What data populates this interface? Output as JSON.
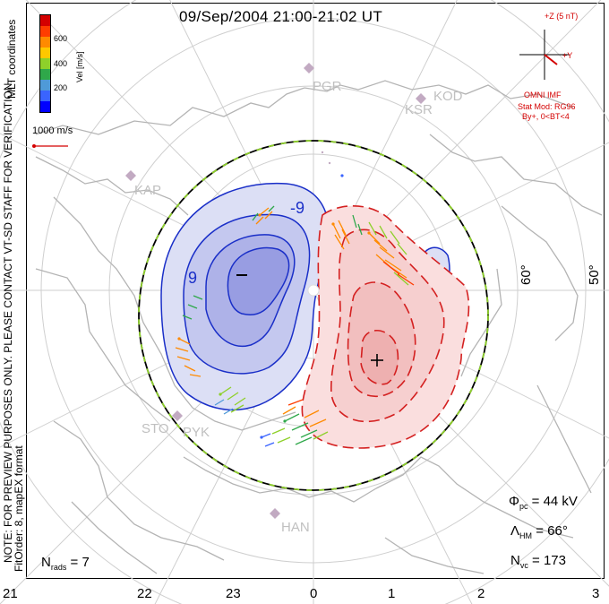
{
  "title": "09/Sep/2004 21:00-21:02 UT",
  "coord_label": "MLT coordinates",
  "note_line1": "NOTE: FOR PREVIEW PURPOSES ONLY. PLEASE CONTACT VT-SD STAFF FOR VERIFICATION.",
  "note_line2": "FitOrder: 8, mapEX format",
  "colorbar": {
    "label": "Vel [m/s]",
    "ticks": [
      "600",
      "400",
      "200"
    ],
    "colors": [
      "#0000ff",
      "#3a64ff",
      "#4f9ad8",
      "#2fa84a",
      "#8ed02a",
      "#ffc800",
      "#ff8a00",
      "#ff3c00",
      "#d40000"
    ]
  },
  "ref_vector_label": "1000 m/s",
  "imf": {
    "axis_z": "+Z (5 nT)",
    "axis_y": "+Y",
    "source": "OMNI IMF",
    "model": "Stat Mod: RG96",
    "condition": "By+, 0<BT<4"
  },
  "lat_labels": [
    "60°",
    "50°"
  ],
  "mlt_labels": [
    "21",
    "22",
    "23",
    "0",
    "1",
    "2",
    "3"
  ],
  "stations": [
    "PGR",
    "KSR",
    "KOD",
    "KAP",
    "STO",
    "PYK",
    "HAN"
  ],
  "cell_symbols": {
    "negative": "–",
    "positive": "+",
    "contour_label": "-9",
    "contour_label_2": "9"
  },
  "stats": {
    "phi_pc_label": "Φ",
    "phi_pc_sub": "pc",
    "phi_pc_value": "= 44 kV",
    "lambda_label": "Λ",
    "lambda_sub": "HM",
    "lambda_value": "= 66°",
    "nvc_label": "N",
    "nvc_sub": "vc",
    "nvc_value": "= 173",
    "nrads_label": "N",
    "nrads_sub": "rads",
    "nrads_value": "= 7"
  }
}
